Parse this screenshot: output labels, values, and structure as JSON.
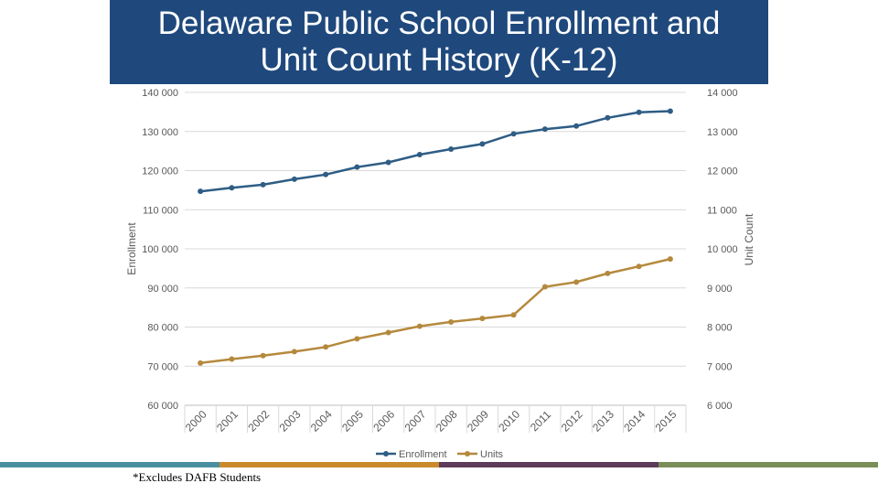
{
  "slide": {
    "title_line1": "Delaware Public School Enrollment and",
    "title_line2": "Unit Count History (K-12)",
    "footnote": "*Excludes DAFB Students",
    "colors": {
      "title_bg": "#1f497d",
      "bar_colors": [
        "#4a8fa0",
        "#c98a2c",
        "#5c3b5a",
        "#7a8e57"
      ]
    }
  },
  "chart_data": {
    "type": "line",
    "title": "",
    "xlabel": "",
    "ylabel": "Enrollment",
    "y2label": "Unit Count",
    "categories": [
      "2000",
      "2001",
      "2002",
      "2003",
      "2004",
      "2005",
      "2006",
      "2007",
      "2008",
      "2009",
      "2010",
      "2011",
      "2012",
      "2013",
      "2014",
      "2015"
    ],
    "ylim": [
      60000,
      140000
    ],
    "y2lim": [
      6000,
      14000
    ],
    "yticks": [
      "140 000",
      "130 000",
      "120 000",
      "110 000",
      "100 000",
      "90 000",
      "80 000",
      "70 000",
      "60 000"
    ],
    "y2ticks": [
      "14 000",
      "13 000",
      "12 000",
      "11 000",
      "10 000",
      "9 000",
      "8 000",
      "7 000",
      "6 000"
    ],
    "series": [
      {
        "name": "Enrollment",
        "axis": "left",
        "color": "#2e5d85",
        "values": [
          114700,
          115600,
          116400,
          117800,
          119000,
          120900,
          122100,
          124100,
          125500,
          126800,
          129400,
          130600,
          131400,
          133500,
          134900,
          135200
        ]
      },
      {
        "name": "Units",
        "axis": "right",
        "color": "#b5893d",
        "values": [
          7080,
          7180,
          7270,
          7370,
          7490,
          7700,
          7860,
          8020,
          8130,
          8220,
          8310,
          9030,
          9150,
          9370,
          9550,
          9740
        ]
      }
    ],
    "legend": [
      "Enrollment",
      "Units"
    ],
    "legend_position": "bottom"
  }
}
